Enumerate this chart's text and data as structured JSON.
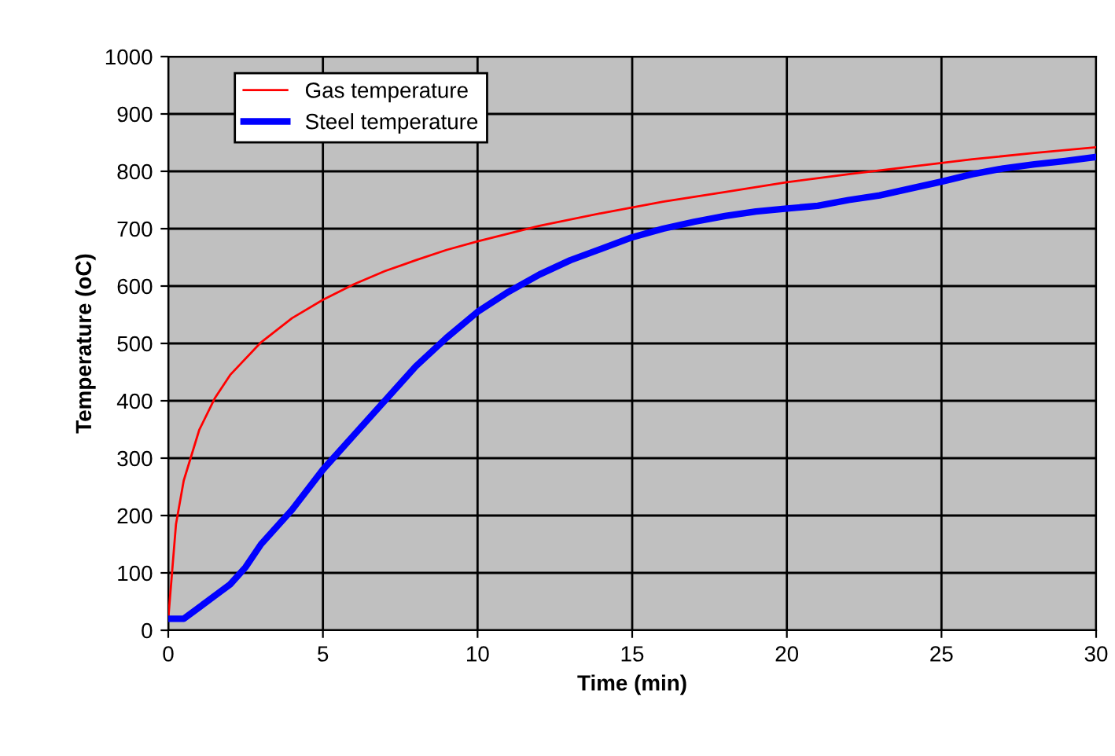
{
  "chart_data": {
    "type": "line",
    "xlabel": "Time (min)",
    "ylabel": "Temperature (oC)",
    "xlim": [
      0,
      30
    ],
    "xticks": [
      0,
      5,
      10,
      15,
      20,
      25,
      30
    ],
    "ylim": [
      0,
      1000
    ],
    "yticks": [
      0,
      100,
      200,
      300,
      400,
      500,
      600,
      700,
      800,
      900,
      1000
    ],
    "grid": true,
    "legend": "top left",
    "marker": "none",
    "line_style": "solid",
    "series": [
      {
        "name": "Gas temperature",
        "color": "#ff0000",
        "x": [
          0,
          0.25,
          0.5,
          1,
          1.5,
          2,
          3,
          4,
          5,
          6,
          7,
          8,
          9,
          10,
          12,
          14,
          16,
          18,
          20,
          22,
          24,
          26,
          28,
          30
        ],
        "values": [
          20,
          185,
          261,
          349,
          404,
          445,
          502,
          544,
          576,
          603,
          626,
          645,
          663,
          678,
          705,
          727,
          747,
          764,
          781,
          795,
          808,
          821,
          832,
          842
        ]
      },
      {
        "name": "Steel temperature",
        "color": "#0000ff",
        "x": [
          0,
          0.5,
          1,
          2,
          2.5,
          3,
          4,
          5,
          6,
          7,
          8,
          9,
          10,
          11,
          12,
          13,
          14,
          15,
          16,
          17,
          18,
          19,
          20,
          21,
          22,
          23,
          24,
          25,
          26,
          27,
          28,
          29,
          30
        ],
        "values": [
          20,
          20,
          40,
          80,
          110,
          150,
          210,
          280,
          340,
          400,
          460,
          510,
          555,
          590,
          620,
          645,
          665,
          685,
          700,
          712,
          722,
          730,
          735,
          740,
          750,
          758,
          770,
          782,
          795,
          805,
          812,
          818,
          825
        ]
      }
    ]
  }
}
